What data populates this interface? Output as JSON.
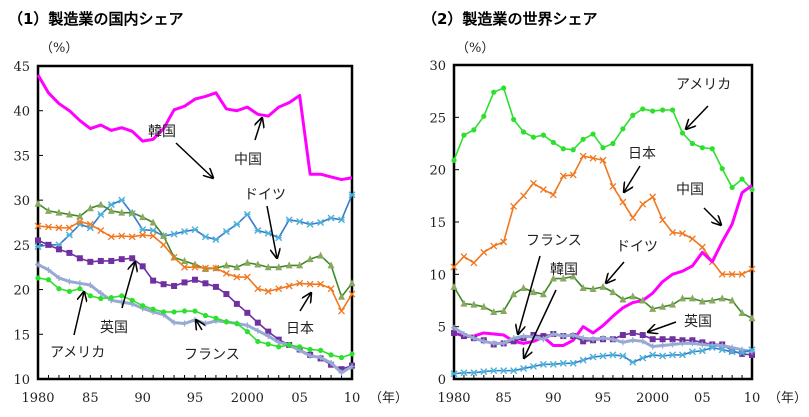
{
  "chart_data": [
    {
      "type": "line",
      "title": "（1）製造業の国内シェア",
      "ylabel": "（%）",
      "xlabel": "（年）",
      "ylim": [
        10,
        45
      ],
      "yticks": [
        "45",
        "40",
        "35",
        "30",
        "25",
        "20",
        "15",
        "10"
      ],
      "xticks": [
        "1980",
        "85",
        "90",
        "95",
        "2000",
        "05",
        "10"
      ],
      "x": [
        1980,
        1981,
        1982,
        1983,
        1984,
        1985,
        1986,
        1987,
        1988,
        1989,
        1990,
        1991,
        1992,
        1993,
        1994,
        1995,
        1996,
        1997,
        1998,
        1999,
        2000,
        2001,
        2002,
        2003,
        2004,
        2005,
        2006,
        2007,
        2008,
        2009,
        2010
      ],
      "grid": false,
      "series": [
        {
          "name": "中国",
          "color": "#ff00ff",
          "marker": "none",
          "values": [
            44,
            42,
            40.8,
            40,
            38.9,
            38,
            38.4,
            37.8,
            38.1,
            37.7,
            36.6,
            36.8,
            38,
            40.1,
            40.5,
            41.3,
            41.6,
            42,
            40.2,
            40,
            40.4,
            39.6,
            39.4,
            40.4,
            40.9,
            41.7,
            32.9,
            32.9,
            32.6,
            32.3,
            32.5
          ]
        },
        {
          "name": "韓国",
          "color": "#3a78cc",
          "marker": "star",
          "values": [
            24.8,
            25,
            25,
            26.1,
            27.3,
            26.9,
            28.4,
            29.5,
            30,
            28.5,
            26.7,
            26.6,
            26,
            26.2,
            26.5,
            26.7,
            25.9,
            25.6,
            26.5,
            27.3,
            28.4,
            26.6,
            26.3,
            25.8,
            27.8,
            27.6,
            27.3,
            27.5,
            28,
            27.8,
            30.6
          ]
        },
        {
          "name": "ドイツ",
          "color": "#3c8a28",
          "marker": "triangle",
          "values": [
            29.6,
            28.8,
            28.6,
            28.4,
            28.2,
            29.1,
            29.5,
            28.8,
            28.6,
            28.6,
            28.1,
            27.5,
            26,
            23.6,
            23.2,
            22.8,
            22.3,
            22.4,
            22.7,
            22.5,
            23,
            22.8,
            22.5,
            22.5,
            22.7,
            22.7,
            23.4,
            23.8,
            22.7,
            19.2,
            20.7
          ]
        },
        {
          "name": "日本",
          "color": "#f07820",
          "marker": "x",
          "values": [
            27.1,
            27,
            26.9,
            26.9,
            27.6,
            27.3,
            26.6,
            25.9,
            26,
            25.9,
            26.1,
            26,
            25,
            23.6,
            22.5,
            22.5,
            22.4,
            22.4,
            21.8,
            21.4,
            21.4,
            20.1,
            19.8,
            20.1,
            20.4,
            20.7,
            20.6,
            20.6,
            20.1,
            17.6,
            19.5
          ]
        },
        {
          "name": "英国",
          "color": "#7030a0",
          "marker": "square",
          "values": [
            25.5,
            25,
            24.5,
            24.1,
            23.5,
            23.1,
            23.2,
            23.2,
            23.4,
            23.5,
            22.6,
            21,
            20.6,
            20.4,
            20.8,
            21.1,
            20.7,
            20.3,
            19.5,
            18.4,
            17.4,
            16.3,
            15.3,
            14.4,
            13.8,
            13.3,
            12.7,
            12.3,
            11.6,
            11.1,
            11.5
          ]
        },
        {
          "name": "フランス",
          "color": "#98aad4",
          "marker": "plus",
          "values": [
            22.8,
            22.2,
            21.3,
            20.9,
            20.7,
            20.5,
            19.6,
            18.8,
            18.6,
            18.4,
            17.9,
            17.5,
            17.2,
            16.3,
            16.2,
            16.6,
            16.2,
            16.5,
            16.4,
            16.2,
            16,
            15.4,
            14.8,
            14.1,
            13.8,
            13.2,
            12.6,
            12.4,
            11.8,
            10.7,
            11.4
          ]
        },
        {
          "name": "アメリカ",
          "color": "#2ee02e",
          "marker": "circle",
          "values": [
            21.3,
            21.1,
            20.1,
            19.8,
            20.1,
            19.3,
            19,
            19.1,
            19.3,
            18.8,
            18.2,
            17.8,
            17.5,
            17.5,
            17.6,
            17.6,
            17.1,
            16.8,
            16.4,
            16.2,
            15.3,
            14.2,
            13.9,
            13.6,
            13.8,
            13.6,
            13.3,
            13.2,
            12.7,
            12.4,
            12.8
          ]
        }
      ]
    },
    {
      "type": "line",
      "title": "（2）製造業の世界シェア",
      "ylabel": "（%）",
      "xlabel": "（年）",
      "ylim": [
        0,
        30
      ],
      "yticks": [
        "30",
        "25",
        "20",
        "15",
        "10",
        "5",
        "0"
      ],
      "xticks": [
        "1980",
        "85",
        "90",
        "95",
        "2000",
        "05",
        "10"
      ],
      "x": [
        1980,
        1981,
        1982,
        1983,
        1984,
        1985,
        1986,
        1987,
        1988,
        1989,
        1990,
        1991,
        1992,
        1993,
        1994,
        1995,
        1996,
        1997,
        1998,
        1999,
        2000,
        2001,
        2002,
        2003,
        2004,
        2005,
        2006,
        2007,
        2008,
        2009,
        2010
      ],
      "grid": false,
      "series": [
        {
          "name": "アメリカ",
          "color": "#2ee02e",
          "marker": "circle",
          "values": [
            20.9,
            23.3,
            23.8,
            25.1,
            27.4,
            27.8,
            24.8,
            23.6,
            23.1,
            23.3,
            22.6,
            22,
            21.9,
            22.9,
            23.4,
            22.1,
            22.5,
            23.9,
            25.2,
            25.8,
            25.6,
            25.7,
            25.7,
            23.5,
            22.5,
            22.1,
            22,
            20.1,
            18.3,
            19.1,
            18.1
          ]
        },
        {
          "name": "日本",
          "color": "#f07820",
          "marker": "x",
          "values": [
            10.7,
            11.7,
            11.1,
            12.1,
            12.7,
            13.1,
            16.5,
            17.5,
            18.7,
            18.1,
            17.6,
            19.4,
            19.5,
            21.3,
            21.1,
            20.9,
            18.4,
            16.9,
            15.4,
            16.7,
            17.4,
            15.2,
            14,
            13.9,
            13.4,
            12.6,
            11.2,
            10,
            10,
            10,
            10.5
          ]
        },
        {
          "name": "中国",
          "color": "#ff00ff",
          "marker": "none",
          "values": [
            4.4,
            4.1,
            4.1,
            4.4,
            4.3,
            4.2,
            3.6,
            3.4,
            3.6,
            4,
            3.2,
            3.2,
            3.7,
            5,
            4.4,
            5.1,
            6,
            6.8,
            7.3,
            7.5,
            8.2,
            9.3,
            10,
            10.3,
            10.8,
            12.1,
            11.2,
            13.1,
            14.8,
            17.8,
            18.5
          ]
        },
        {
          "name": "ドイツ",
          "color": "#3c8a28",
          "marker": "triangle",
          "values": [
            8.8,
            7.2,
            7.1,
            6.9,
            6.4,
            6.5,
            8.1,
            8.7,
            8.3,
            8.1,
            9.6,
            9.6,
            9.8,
            8.7,
            8.6,
            8.8,
            8.3,
            7.6,
            7.9,
            7.5,
            6.7,
            6.9,
            7.1,
            7.7,
            7.7,
            7.4,
            7.5,
            7.7,
            7.5,
            6.3,
            5.8
          ]
        },
        {
          "name": "英国",
          "color": "#7030a0",
          "marker": "square",
          "values": [
            4.4,
            4.1,
            3.9,
            3.7,
            3.3,
            3.4,
            3.6,
            3.9,
            4.2,
            4.1,
            4.3,
            4.1,
            4.1,
            3.6,
            3.7,
            3.8,
            3.8,
            4.2,
            4.4,
            4.2,
            3.8,
            3.8,
            3.8,
            3.7,
            3.7,
            3.5,
            3.3,
            3.3,
            2.7,
            2.4,
            2.3
          ]
        },
        {
          "name": "フランス",
          "color": "#98aad4",
          "marker": "plus",
          "values": [
            4.9,
            4.3,
            3.9,
            3.6,
            3.4,
            3.4,
            3.9,
            4.1,
            4,
            3.8,
            4.3,
            4.1,
            4.2,
            3.9,
            3.8,
            3.9,
            3.8,
            3.5,
            3.7,
            3.6,
            3.1,
            3.2,
            3.3,
            3.4,
            3.4,
            3.3,
            3.2,
            3.2,
            3,
            2.8,
            2.6
          ]
        },
        {
          "name": "韓国",
          "color": "#3a78cc",
          "marker": "star",
          "values": [
            0.5,
            0.6,
            0.6,
            0.7,
            0.8,
            0.8,
            0.8,
            1,
            1.2,
            1.4,
            1.4,
            1.5,
            1.5,
            1.8,
            2.1,
            2.2,
            2.3,
            2.2,
            1.6,
            2,
            2.3,
            2.2,
            2.3,
            2.3,
            2.6,
            2.7,
            3,
            2.8,
            2.6,
            2.5,
            2.8
          ]
        }
      ]
    }
  ]
}
